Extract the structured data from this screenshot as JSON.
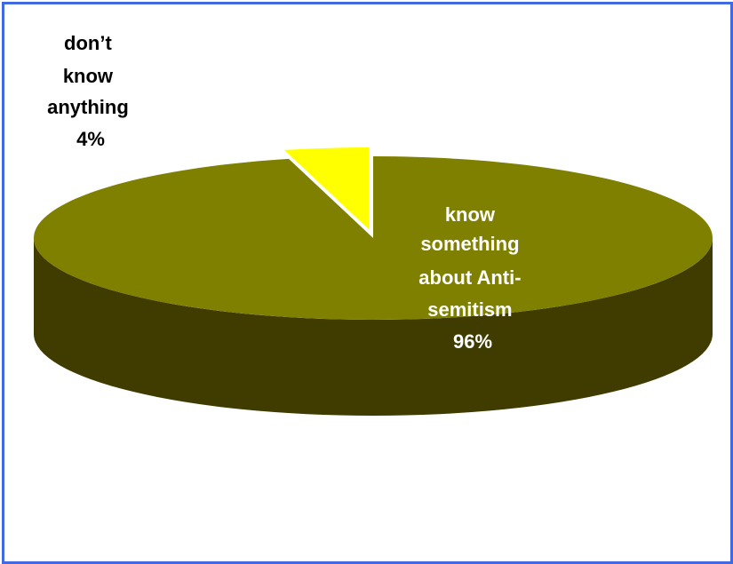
{
  "colors": {
    "border": "#4169e1",
    "know_top": "#808000",
    "know_side": "#403c00",
    "dont_top": "#ffff00",
    "dont_side": "#b3b300"
  },
  "chart_data": {
    "type": "pie",
    "three_d": true,
    "labels": [
      "know something about Anti-semitism",
      "don’t know anything"
    ],
    "values": [
      96,
      4
    ],
    "label_lines": [
      [
        "know",
        "something",
        "about Anti-",
        "semitism",
        "96%"
      ],
      [
        "don’t",
        "know",
        "anything",
        "4%"
      ]
    ],
    "exploded_slice": "don’t know anything"
  }
}
